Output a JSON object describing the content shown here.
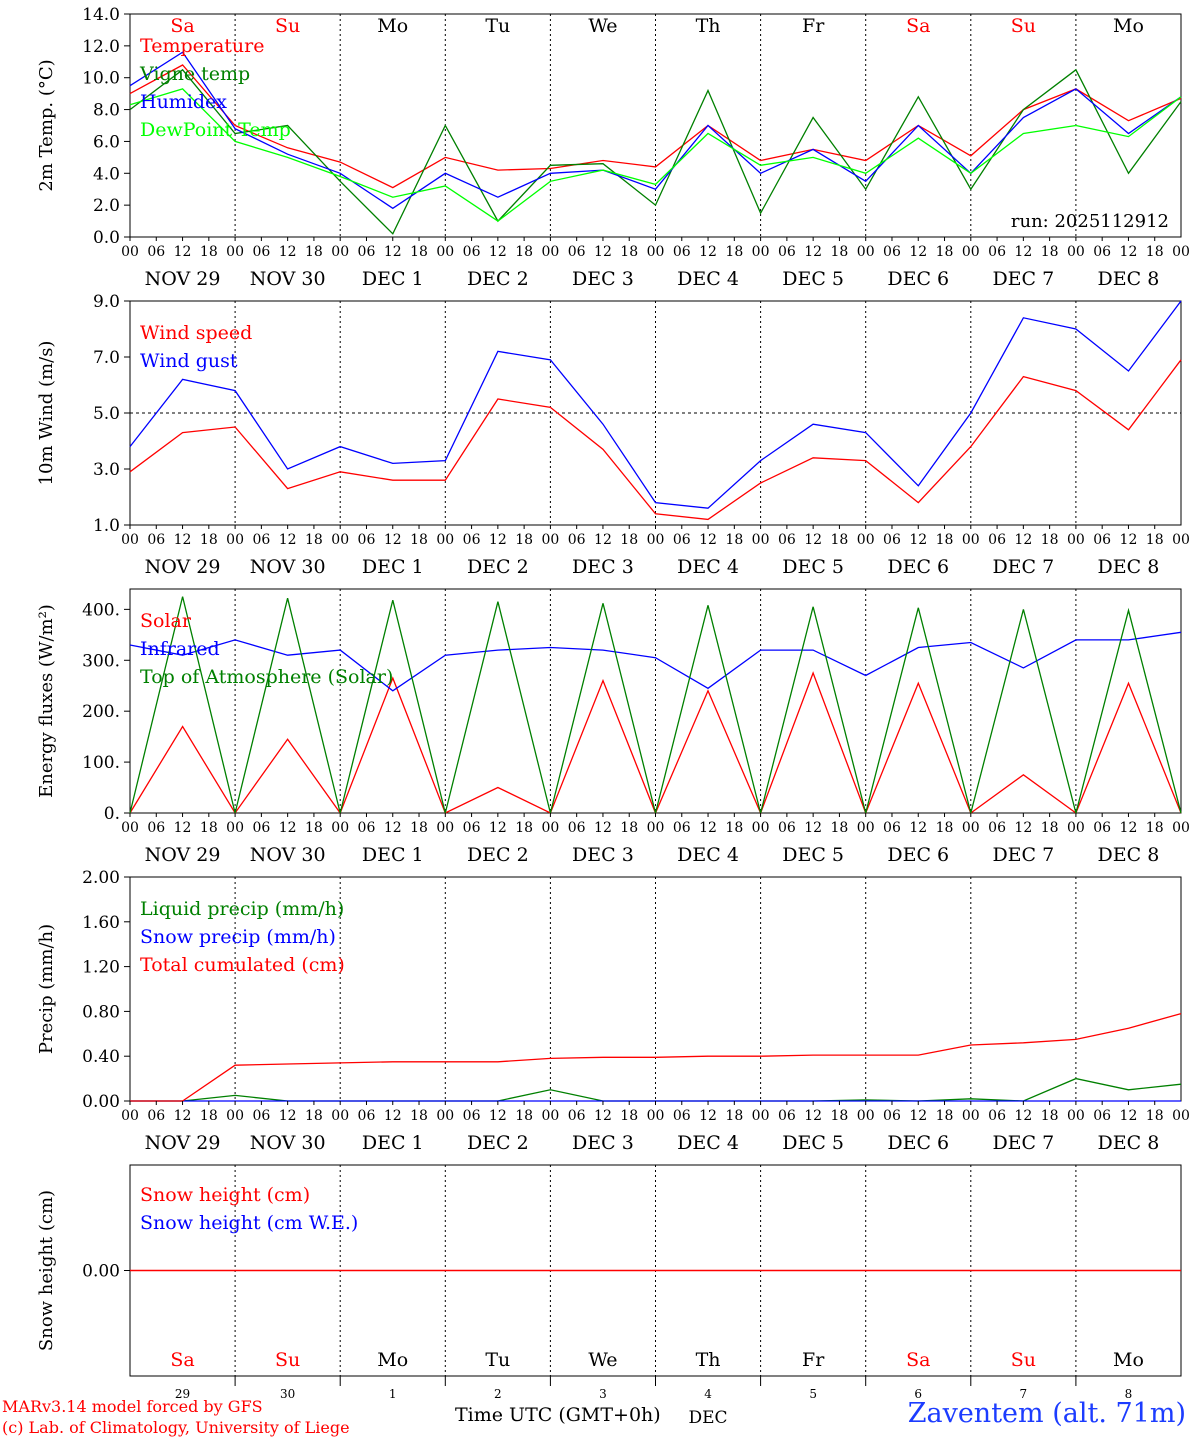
{
  "footer": {
    "model_line": "MARv3.14 model forced by GFS",
    "lab_line": "(c) Lab. of Climatology, University of Liege",
    "time_label": "Time UTC (GMT+0h)",
    "month_label": "DEC",
    "station": "Zaventem (alt. 71m)"
  },
  "colors": {
    "red": "#ff0000",
    "dark_green": "#008000",
    "light_green": "#00ff00",
    "blue": "#0000ff",
    "station_blue": "#1c3cff",
    "weekend": "#ff0000",
    "weekday": "#000000"
  },
  "days": {
    "weekday_labels": [
      "Sa",
      "Su",
      "Mo",
      "Tu",
      "We",
      "Th",
      "Fr",
      "Sa",
      "Su",
      "Mo"
    ],
    "weekend_flags": [
      true,
      true,
      false,
      false,
      false,
      false,
      false,
      true,
      true,
      false
    ],
    "date_labels": [
      "NOV 29",
      "NOV 30",
      "DEC  1",
      "DEC  2",
      "DEC  3",
      "DEC  4",
      "DEC  5",
      "DEC  6",
      "DEC  7",
      "DEC  8"
    ],
    "day_numbers": [
      "29",
      "30",
      "1",
      "2",
      "3",
      "4",
      "5",
      "6",
      "7",
      "8"
    ],
    "hour_ticks": [
      "00",
      "06",
      "12",
      "18"
    ],
    "end_tick": "00"
  },
  "chart_data": [
    {
      "type": "line",
      "ylabel": "2m Temp. (°C)",
      "ylim": [
        0,
        14
      ],
      "yticks": [
        "0.0",
        "2.0",
        "4.0",
        "6.0",
        "8.0",
        "10.0",
        "12.0",
        "14.0"
      ],
      "annotation": "run: 2025112912",
      "legend_placement": "left",
      "x_hours": [
        0,
        12,
        24,
        36,
        48,
        60,
        72,
        84,
        96,
        108,
        120,
        132,
        144,
        156,
        168,
        180,
        192,
        204,
        216,
        228,
        240
      ],
      "series": [
        {
          "name": "Temperature",
          "color": "#ff0000",
          "values": [
            9.0,
            10.8,
            7.0,
            5.6,
            4.7,
            3.1,
            5.0,
            4.2,
            4.3,
            4.8,
            4.4,
            7.0,
            4.8,
            5.5,
            4.8,
            7.0,
            5.1,
            8.0,
            9.3,
            7.3,
            8.7
          ]
        },
        {
          "name": "Vigne temp",
          "color": "#008000",
          "values": [
            8.0,
            10.5,
            6.5,
            7.0,
            3.5,
            0.2,
            7.0,
            1.0,
            4.5,
            4.6,
            2.0,
            9.2,
            1.5,
            7.5,
            3.0,
            8.8,
            3.0,
            8.0,
            10.5,
            4.0,
            8.5
          ]
        },
        {
          "name": "Humidex",
          "color": "#0000ff",
          "values": [
            9.5,
            11.6,
            6.8,
            5.2,
            4.0,
            1.8,
            4.0,
            2.5,
            4.0,
            4.2,
            3.0,
            7.0,
            4.0,
            5.5,
            3.5,
            7.0,
            4.0,
            7.5,
            9.3,
            6.5,
            8.8
          ]
        },
        {
          "name": "DewPoint Temp",
          "color": "#00ff00",
          "values": [
            8.3,
            9.3,
            6.0,
            5.0,
            3.8,
            2.5,
            3.2,
            1.0,
            3.5,
            4.2,
            3.3,
            6.5,
            4.5,
            5.0,
            4.0,
            6.2,
            4.0,
            6.5,
            7.0,
            6.3,
            8.8
          ]
        }
      ]
    },
    {
      "type": "line",
      "ylabel": "10m Wind (m/s)",
      "ylim": [
        1,
        9
      ],
      "yticks": [
        "1.0",
        "3.0",
        "5.0",
        "7.0",
        "9.0"
      ],
      "reference_line": 5.0,
      "legend_placement": "left",
      "x_hours": [
        0,
        12,
        24,
        36,
        48,
        60,
        72,
        84,
        96,
        108,
        120,
        132,
        144,
        156,
        168,
        180,
        192,
        204,
        216,
        228,
        240
      ],
      "series": [
        {
          "name": "Wind speed",
          "color": "#ff0000",
          "values": [
            2.9,
            4.3,
            4.5,
            2.3,
            2.9,
            2.6,
            2.6,
            5.5,
            5.2,
            3.7,
            1.4,
            1.2,
            2.5,
            3.4,
            3.3,
            1.8,
            3.8,
            6.3,
            5.8,
            4.4,
            6.9
          ]
        },
        {
          "name": "Wind gust",
          "color": "#0000ff",
          "values": [
            3.8,
            6.2,
            5.8,
            3.0,
            3.8,
            3.2,
            3.3,
            7.2,
            6.9,
            4.6,
            1.8,
            1.6,
            3.3,
            4.6,
            4.3,
            2.4,
            5.0,
            8.4,
            8.0,
            6.5,
            9.0
          ]
        }
      ]
    },
    {
      "type": "line",
      "ylabel": "Energy fluxes (W/m²)",
      "ylim": [
        0,
        440
      ],
      "yticks": [
        "0.",
        "100.",
        "200.",
        "300.",
        "400."
      ],
      "legend_placement": "left",
      "x_hours": [
        0,
        12,
        24,
        36,
        48,
        60,
        72,
        84,
        96,
        108,
        120,
        132,
        144,
        156,
        168,
        180,
        192,
        204,
        216,
        228,
        240
      ],
      "series": [
        {
          "name": "Solar",
          "color": "#ff0000",
          "values": [
            0,
            170,
            0,
            145,
            0,
            265,
            0,
            50,
            0,
            260,
            0,
            240,
            0,
            275,
            0,
            255,
            0,
            75,
            0,
            255,
            0
          ]
        },
        {
          "name": "Infrared",
          "color": "#0000ff",
          "values": [
            330,
            310,
            340,
            310,
            320,
            240,
            310,
            320,
            325,
            320,
            305,
            245,
            320,
            320,
            270,
            325,
            335,
            285,
            340,
            340,
            355
          ]
        },
        {
          "name": "Top of Atmosphere (Solar)",
          "color": "#008000",
          "values": [
            0,
            425,
            0,
            422,
            0,
            418,
            0,
            415,
            0,
            412,
            0,
            408,
            0,
            405,
            0,
            403,
            0,
            400,
            0,
            398,
            0
          ]
        }
      ]
    },
    {
      "type": "line",
      "ylabel": "Precip (mm/h)",
      "ylim": [
        0,
        2
      ],
      "yticks": [
        "0.00",
        "0.40",
        "0.80",
        "1.20",
        "1.60",
        "2.00"
      ],
      "legend_placement": "left",
      "x_hours": [
        0,
        12,
        24,
        36,
        48,
        60,
        72,
        84,
        96,
        108,
        120,
        132,
        144,
        156,
        168,
        180,
        192,
        204,
        216,
        228,
        240
      ],
      "series": [
        {
          "name": "Liquid precip (mm/h)",
          "color": "#008000",
          "values": [
            0,
            0,
            0.05,
            0,
            0,
            0,
            0,
            0,
            0.1,
            0,
            0,
            0,
            0,
            0,
            0.01,
            0,
            0.02,
            0,
            0.2,
            0.1,
            0.15
          ]
        },
        {
          "name": "Snow precip (mm/h)",
          "color": "#0000ff",
          "values": [
            0,
            0,
            0,
            0,
            0,
            0,
            0,
            0,
            0,
            0,
            0,
            0,
            0,
            0,
            0,
            0,
            0,
            0,
            0,
            0,
            0
          ]
        },
        {
          "name": "Total cumulated (cm)",
          "color": "#ff0000",
          "values": [
            0,
            0,
            0.32,
            0.33,
            0.34,
            0.35,
            0.35,
            0.35,
            0.38,
            0.39,
            0.39,
            0.4,
            0.4,
            0.41,
            0.41,
            0.41,
            0.5,
            0.52,
            0.55,
            0.65,
            0.78
          ]
        }
      ]
    },
    {
      "type": "line",
      "ylabel": "Snow height (cm)",
      "ylim": [
        -1,
        1
      ],
      "yticks": [
        "0.00"
      ],
      "legend_placement": "left",
      "x_hours": [
        0,
        240
      ],
      "series": [
        {
          "name": "Snow height (cm)",
          "color": "#ff0000",
          "values": [
            0,
            0
          ]
        },
        {
          "name": "Snow height (cm W.E.)",
          "color": "#0000ff",
          "values": [
            0,
            0
          ]
        }
      ]
    }
  ]
}
